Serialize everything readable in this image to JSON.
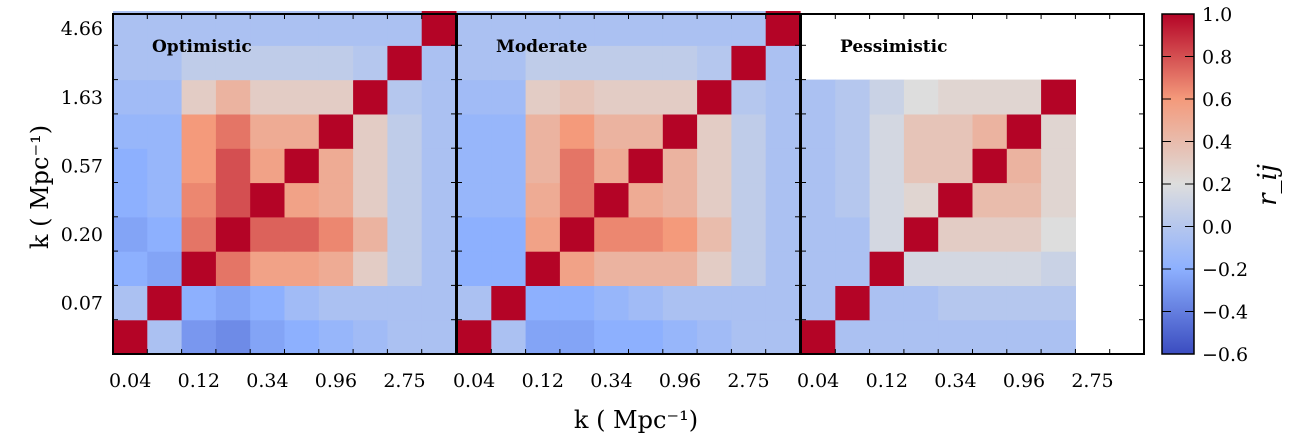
{
  "chart_data": {
    "type": "heatmap",
    "xlabel": "k ( Mpc⁻¹)",
    "ylabel": "k ( Mpc⁻¹)",
    "x_tick_labels": [
      "0.04",
      "0.12",
      "0.34",
      "0.96",
      "2.75"
    ],
    "y_tick_labels": [
      "4.66",
      "1.63",
      "0.57",
      "0.20",
      "0.07"
    ],
    "colorbar": {
      "label": "r_ij",
      "range": [
        -0.6,
        1.0
      ],
      "ticks": [
        "1.0",
        "0.8",
        "0.6",
        "0.4",
        "0.2",
        "0.0",
        "−0.2",
        "−0.4",
        "−0.6"
      ],
      "colormap": "coolwarm"
    },
    "panels": [
      {
        "title": "Optimistic",
        "matrix": [
          [
            1.0,
            -0.05,
            -0.3,
            -0.35,
            -0.25,
            -0.2,
            -0.15,
            -0.1,
            -0.05,
            -0.05
          ],
          [
            -0.05,
            1.0,
            -0.2,
            -0.25,
            -0.2,
            -0.1,
            -0.05,
            -0.05,
            -0.05,
            -0.05
          ],
          [
            -0.2,
            -0.25,
            1.0,
            0.7,
            0.55,
            0.55,
            0.5,
            0.3,
            0.05,
            -0.05
          ],
          [
            -0.25,
            -0.2,
            0.7,
            1.0,
            0.75,
            0.75,
            0.65,
            0.45,
            0.05,
            -0.05
          ],
          [
            -0.2,
            -0.15,
            0.65,
            0.8,
            1.0,
            0.55,
            0.5,
            0.3,
            0.05,
            -0.05
          ],
          [
            -0.2,
            -0.15,
            0.6,
            0.8,
            0.55,
            1.0,
            0.5,
            0.3,
            0.05,
            -0.05
          ],
          [
            -0.15,
            -0.15,
            0.6,
            0.7,
            0.5,
            0.5,
            1.0,
            0.3,
            0.05,
            -0.05
          ],
          [
            -0.1,
            -0.1,
            0.3,
            0.45,
            0.3,
            0.3,
            0.3,
            1.0,
            0.0,
            -0.05
          ],
          [
            -0.05,
            -0.05,
            0.05,
            0.05,
            0.05,
            0.05,
            0.05,
            0.0,
            1.0,
            -0.05
          ],
          [
            -0.05,
            -0.05,
            -0.05,
            -0.05,
            -0.05,
            -0.05,
            -0.05,
            -0.05,
            -0.05,
            1.0
          ]
        ]
      },
      {
        "title": "Moderate",
        "matrix": [
          [
            1.0,
            -0.05,
            -0.25,
            -0.25,
            -0.2,
            -0.2,
            -0.15,
            -0.1,
            -0.05,
            -0.05
          ],
          [
            -0.05,
            1.0,
            -0.2,
            -0.2,
            -0.15,
            -0.1,
            -0.05,
            -0.05,
            -0.05,
            -0.05
          ],
          [
            -0.2,
            -0.2,
            1.0,
            0.55,
            0.45,
            0.45,
            0.45,
            0.3,
            0.05,
            -0.05
          ],
          [
            -0.2,
            -0.2,
            0.55,
            1.0,
            0.65,
            0.65,
            0.6,
            0.4,
            0.05,
            -0.05
          ],
          [
            -0.15,
            -0.15,
            0.5,
            0.7,
            1.0,
            0.5,
            0.45,
            0.3,
            0.05,
            -0.05
          ],
          [
            -0.15,
            -0.15,
            0.45,
            0.7,
            0.5,
            1.0,
            0.45,
            0.3,
            0.05,
            -0.05
          ],
          [
            -0.15,
            -0.15,
            0.45,
            0.6,
            0.45,
            0.45,
            1.0,
            0.3,
            0.05,
            -0.05
          ],
          [
            -0.1,
            -0.1,
            0.3,
            0.35,
            0.3,
            0.3,
            0.3,
            1.0,
            0.0,
            -0.05
          ],
          [
            -0.05,
            -0.05,
            0.05,
            0.05,
            0.05,
            0.05,
            0.05,
            0.0,
            1.0,
            -0.05
          ],
          [
            -0.05,
            -0.05,
            -0.05,
            -0.05,
            -0.05,
            -0.05,
            -0.05,
            -0.05,
            -0.05,
            1.0
          ]
        ]
      },
      {
        "title": "Pessimistic",
        "matrix": [
          [
            1.0,
            -0.05,
            -0.05,
            -0.05,
            -0.05,
            -0.05,
            -0.05,
            -0.05
          ],
          [
            -0.05,
            1.0,
            -0.05,
            -0.05,
            -0.0,
            -0.0,
            -0.0,
            -0.0
          ],
          [
            -0.05,
            -0.05,
            1.0,
            0.15,
            0.15,
            0.15,
            0.15,
            0.1
          ],
          [
            -0.05,
            -0.05,
            0.15,
            1.0,
            0.3,
            0.3,
            0.3,
            0.2
          ],
          [
            -0.05,
            -0.0,
            0.15,
            0.25,
            1.0,
            0.4,
            0.4,
            0.25
          ],
          [
            -0.05,
            -0.0,
            0.15,
            0.35,
            0.35,
            1.0,
            0.45,
            0.25
          ],
          [
            -0.05,
            -0.0,
            0.15,
            0.35,
            0.35,
            0.45,
            1.0,
            0.25
          ],
          [
            -0.05,
            -0.0,
            0.1,
            0.2,
            0.25,
            0.25,
            0.25,
            1.0
          ]
        ]
      }
    ]
  }
}
